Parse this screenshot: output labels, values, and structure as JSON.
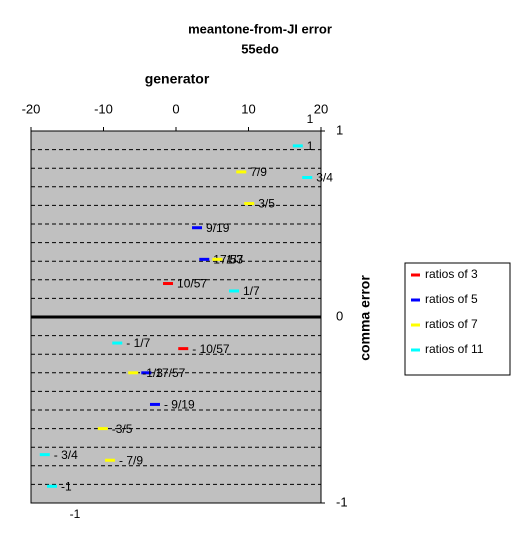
{
  "chart_data": {
    "type": "scatter",
    "title": "meantone-from-JI error",
    "subtitle": "55edo",
    "x_label": "generator",
    "y_label": "comma error",
    "xlim": [
      -20,
      20
    ],
    "xticks": [
      -20,
      -10,
      0,
      10,
      20
    ],
    "ylim": [
      -1,
      1
    ],
    "yticks": [
      -1,
      0,
      1
    ],
    "ygrid": [
      -0.9,
      -0.8,
      -0.7,
      -0.6,
      -0.5,
      -0.4,
      -0.3,
      -0.2,
      -0.1,
      0.1,
      0.2,
      0.3,
      0.4,
      0.5,
      0.6,
      0.7,
      0.8,
      0.9
    ],
    "extra_labels": [
      "1",
      "-1"
    ],
    "legend": "right",
    "series": [
      {
        "name": "ratios of 3",
        "color": "#ff0000",
        "x": [
          -1.1,
          1.0
        ],
        "values": [
          0.18,
          -0.17
        ],
        "labels": [
          "10/57",
          "- 10/57"
        ]
      },
      {
        "name": "ratios of 5",
        "color": "#0000ff",
        "x": [
          2.9,
          3.9,
          -4.1,
          -2.9
        ],
        "values": [
          0.48,
          0.31,
          -0.3,
          -0.47
        ],
        "labels": [
          "9/19",
          "17/57",
          "17/57",
          "- 9/19"
        ]
      },
      {
        "name": "ratios of 7",
        "color": "#ffff00",
        "x": [
          9.0,
          10.1,
          5.7,
          -5.9,
          -10.1,
          -9.1
        ],
        "values": [
          0.78,
          0.61,
          0.31,
          -0.3,
          -0.6,
          -0.77
        ],
        "labels": [
          "7/9",
          "3/5",
          "1/3",
          "-1/3",
          "-3/5",
          "- 7/9"
        ]
      },
      {
        "name": "ratios of 11",
        "color": "#00ffff",
        "x": [
          16.8,
          18.1,
          8.0,
          -8.1,
          -18.1,
          -17.1
        ],
        "values": [
          0.92,
          0.75,
          0.14,
          -0.14,
          -0.74,
          -0.91
        ],
        "labels": [
          "1",
          "3/4",
          "1/7",
          "- 1/7",
          "- 3/4",
          "-1"
        ]
      }
    ]
  }
}
